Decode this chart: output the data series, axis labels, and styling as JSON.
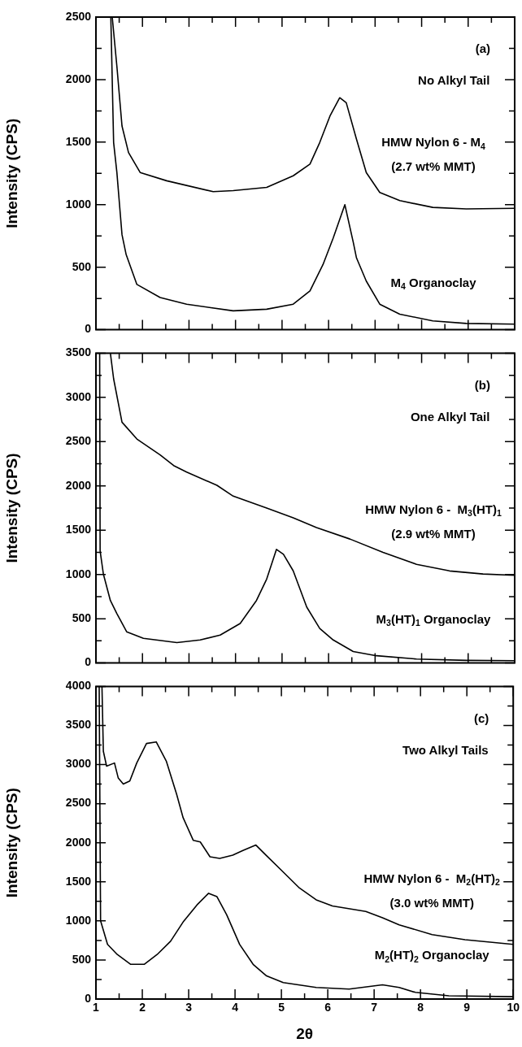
{
  "chart_data": [
    {
      "type": "line",
      "title": "(a)",
      "subtitle": "No Alkyl Tail",
      "ylabel": "Intensity (CPS)",
      "xlim": [
        1,
        10
      ],
      "ylim": [
        0,
        2500
      ],
      "xticks": [
        1,
        {
          "value": 1.5,
          "label": null
        },
        2,
        {
          "value": 2.5,
          "label": null
        },
        3,
        {
          "value": 3.5,
          "label": null
        },
        4,
        {
          "value": 4.5,
          "label": null
        },
        5,
        {
          "value": 5.5,
          "label": null
        },
        6,
        {
          "value": 6.5,
          "label": null
        },
        7,
        {
          "value": 7.5,
          "label": null
        },
        8,
        {
          "value": 8.5,
          "label": null
        },
        9,
        {
          "value": 9.5,
          "label": null
        },
        10
      ],
      "yticks": [
        0,
        {
          "value": 250,
          "label": null
        },
        500,
        {
          "value": 750,
          "label": null
        },
        1000,
        {
          "value": 1250,
          "label": null
        },
        1500,
        {
          "value": 1750,
          "label": null
        },
        2000,
        {
          "value": 2250,
          "label": null
        },
        2500
      ],
      "tick_labels": "y",
      "grid": false,
      "legend": "right",
      "marker": "none",
      "line_style": "solid",
      "series": [
        {
          "name": "HMW Nylon 6 - M$_{4}$ (2.7 wt% MMT)",
          "color": "#000000",
          "x": [
            1.35,
            1.45,
            1.56,
            1.7,
            1.95,
            2.52,
            3.52,
            3.95,
            4.67,
            5.24,
            5.6,
            5.81,
            6.03,
            6.24,
            6.38,
            6.6,
            6.81,
            7.1,
            7.53,
            8.24,
            8.96,
            10
          ],
          "values": [
            2500,
            2107,
            1629,
            1417,
            1257,
            1191,
            1104,
            1112,
            1138,
            1231,
            1324,
            1497,
            1709,
            1855,
            1815,
            1523,
            1257,
            1098,
            1032,
            978,
            966,
            971
          ]
        },
        {
          "name": "M$_{4}$ Organoclay",
          "color": "#000000",
          "x": [
            1.32,
            1.38,
            1.45,
            1.52,
            1.56,
            1.65,
            1.88,
            2.38,
            2.95,
            3.95,
            4.67,
            5.24,
            5.6,
            5.88,
            6.1,
            6.35,
            6.53,
            6.6,
            6.81,
            7.1,
            7.53,
            8.24,
            8.96,
            10
          ],
          "values": [
            2500,
            1497,
            1258,
            940,
            760,
            600,
            362,
            257,
            204,
            151,
            164,
            204,
            310,
            521,
            733,
            1000,
            700,
            574,
            389,
            204,
            124,
            71,
            50,
            45
          ]
        }
      ]
    },
    {
      "type": "line",
      "title": "(b)",
      "subtitle": "One Alkyl Tail",
      "ylabel": "Intensity (CPS)",
      "xlim": [
        1,
        10
      ],
      "ylim": [
        0,
        3500
      ],
      "xticks": [
        1,
        {
          "value": 1.5,
          "label": null
        },
        2,
        {
          "value": 2.5,
          "label": null
        },
        3,
        {
          "value": 3.5,
          "label": null
        },
        4,
        {
          "value": 4.5,
          "label": null
        },
        5,
        {
          "value": 5.5,
          "label": null
        },
        6,
        {
          "value": 6.5,
          "label": null
        },
        7,
        {
          "value": 7.5,
          "label": null
        },
        8,
        {
          "value": 8.5,
          "label": null
        },
        9,
        {
          "value": 9.5,
          "label": null
        },
        10
      ],
      "yticks": [
        0,
        {
          "value": 250,
          "label": null
        },
        500,
        {
          "value": 750,
          "label": null
        },
        1000,
        {
          "value": 1250,
          "label": null
        },
        1500,
        {
          "value": 1750,
          "label": null
        },
        2000,
        {
          "value": 2250,
          "label": null
        },
        2500,
        {
          "value": 2750,
          "label": null
        },
        3000,
        {
          "value": 3250,
          "label": null
        },
        3500
      ],
      "tick_labels": "y",
      "grid": false,
      "legend": "right",
      "marker": "none",
      "line_style": "solid",
      "series": [
        {
          "name": "HMW Nylon 6 -  M$_{3}$(HT)$_{1}$ (2.9 wt% MMT)",
          "color": "#000000",
          "x": [
            1.31,
            1.38,
            1.56,
            1.88,
            2.38,
            2.67,
            2.95,
            3.6,
            3.95,
            4.67,
            5.24,
            5.74,
            6.46,
            7.17,
            7.89,
            8.6,
            9.32,
            10
          ],
          "values": [
            3500,
            3210,
            2720,
            2530,
            2350,
            2230,
            2156,
            2007,
            1885,
            1750,
            1640,
            1530,
            1400,
            1250,
            1115,
            1040,
            1005,
            990
          ]
        },
        {
          "name": "M$_{3}$(HT)$_{1}$ Organoclay",
          "color": "#000000",
          "x": [
            1.08,
            1.09,
            1.16,
            1.31,
            1.45,
            1.66,
            2.02,
            2.74,
            3.24,
            3.67,
            4.1,
            4.45,
            4.67,
            4.88,
            5.03,
            5.24,
            5.53,
            5.81,
            6.1,
            6.53,
            7.03,
            7.89,
            8.96,
            10
          ],
          "values": [
            3500,
            1265,
            1004,
            706,
            558,
            353,
            279,
            230,
            260,
            316,
            446,
            706,
            948,
            1283,
            1227,
            1041,
            632,
            390,
            260,
            130,
            82,
            45,
            30,
            26
          ]
        }
      ]
    },
    {
      "type": "line",
      "title": "(c)",
      "subtitle": "Two Alkyl Tails",
      "xlabel": "2θ",
      "ylabel": "Intensity (CPS)",
      "xlim": [
        1,
        10
      ],
      "ylim": [
        0,
        4000
      ],
      "xticks": [
        1,
        {
          "value": 1.5,
          "label": null
        },
        2,
        {
          "value": 2.5,
          "label": null
        },
        3,
        {
          "value": 3.5,
          "label": null
        },
        4,
        {
          "value": 4.5,
          "label": null
        },
        5,
        {
          "value": 5.5,
          "label": null
        },
        6,
        {
          "value": 6.5,
          "label": null
        },
        7,
        {
          "value": 7.5,
          "label": null
        },
        8,
        {
          "value": 8.5,
          "label": null
        },
        9,
        {
          "value": 9.5,
          "label": null
        },
        10
      ],
      "yticks": [
        0,
        {
          "value": 250,
          "label": null
        },
        500,
        {
          "value": 750,
          "label": null
        },
        1000,
        {
          "value": 1250,
          "label": null
        },
        1500,
        {
          "value": 1750,
          "label": null
        },
        2000,
        {
          "value": 2250,
          "label": null
        },
        2500,
        {
          "value": 2750,
          "label": null
        },
        3000,
        {
          "value": 3250,
          "label": null
        },
        3500,
        {
          "value": 3750,
          "label": null
        },
        4000
      ],
      "grid": false,
      "legend": "right",
      "marker": "none",
      "line_style": "solid",
      "series": [
        {
          "name": "HMW Nylon 6 -  M$_{2}$(HT)$_{2}$ (3.0 wt% MMT)",
          "color": "#000000",
          "x": [
            1.13,
            1.16,
            1.23,
            1.4,
            1.48,
            1.59,
            1.73,
            1.88,
            2.09,
            2.3,
            2.52,
            2.74,
            2.88,
            3.1,
            3.25,
            3.46,
            3.67,
            3.95,
            4.17,
            4.45,
            4.67,
            5.03,
            5.39,
            5.75,
            6.1,
            6.82,
            7.18,
            7.54,
            8.25,
            8.96,
            10
          ],
          "values": [
            4000,
            3170,
            2980,
            3020,
            2830,
            2750,
            2790,
            3020,
            3270,
            3290,
            3040,
            2620,
            2320,
            2030,
            2010,
            1820,
            1800,
            1840,
            1900,
            1970,
            1840,
            1630,
            1420,
            1270,
            1190,
            1120,
            1040,
            950,
            825,
            760,
            700
          ]
        },
        {
          "name": "M$_{2}$(HT)$_{2}$ Organoclay",
          "color": "#000000",
          "x": [
            1.07,
            1.1,
            1.25,
            1.46,
            1.75,
            2.04,
            2.32,
            2.61,
            2.89,
            3.18,
            3.43,
            3.61,
            3.82,
            4.1,
            4.39,
            4.68,
            5.04,
            5.75,
            6.46,
            7.18,
            7.54,
            7.89,
            8.61,
            10
          ],
          "values": [
            4000,
            1000,
            700,
            570,
            444,
            444,
            570,
            740,
            994,
            1205,
            1353,
            1310,
            1078,
            698,
            444,
            296,
            211,
            148,
            127,
            182,
            148,
            85,
            42,
            30
          ]
        }
      ]
    }
  ]
}
